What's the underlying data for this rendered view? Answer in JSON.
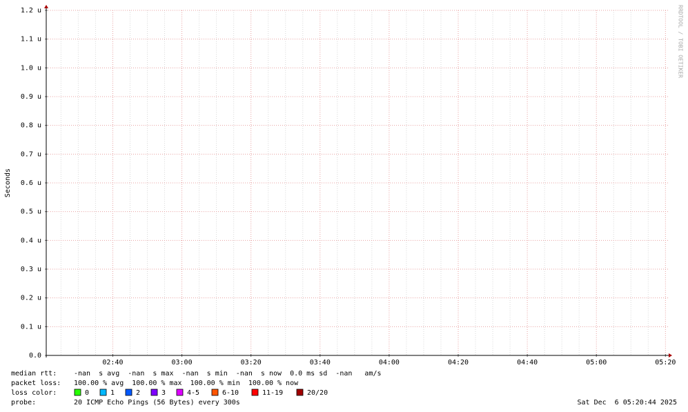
{
  "chart_data": {
    "type": "line",
    "y_label": "Seconds",
    "watermark": "RRDTOOL / TOBI OETIKER",
    "series": [],
    "ylim": [
      0,
      1.2e-06
    ],
    "yticks": [
      {
        "value": 0,
        "label": "0.0"
      },
      {
        "value": 1e-07,
        "label": "0.1 u"
      },
      {
        "value": 2e-07,
        "label": "0.2 u"
      },
      {
        "value": 3e-07,
        "label": "0.3 u"
      },
      {
        "value": 4e-07,
        "label": "0.4 u"
      },
      {
        "value": 5e-07,
        "label": "0.5 u"
      },
      {
        "value": 6e-07,
        "label": "0.6 u"
      },
      {
        "value": 7e-07,
        "label": "0.7 u"
      },
      {
        "value": 8e-07,
        "label": "0.8 u"
      },
      {
        "value": 9e-07,
        "label": "0.9 u"
      },
      {
        "value": 1e-06,
        "label": "1.0 u"
      },
      {
        "value": 1.1e-06,
        "label": "1.1 u"
      },
      {
        "value": 1.2e-06,
        "label": "1.2 u"
      }
    ],
    "xlim": [
      140.73,
      320.73
    ],
    "xticks": [
      {
        "value": 160,
        "label": "02:40"
      },
      {
        "value": 180,
        "label": "03:00"
      },
      {
        "value": 200,
        "label": "03:20"
      },
      {
        "value": 220,
        "label": "03:40"
      },
      {
        "value": 240,
        "label": "04:00"
      },
      {
        "value": 260,
        "label": "04:20"
      },
      {
        "value": 280,
        "label": "04:40"
      },
      {
        "value": 300,
        "label": "05:00"
      },
      {
        "value": 320,
        "label": "05:20"
      }
    ],
    "xminorticks": [
      145,
      150,
      155,
      165,
      170,
      175,
      185,
      190,
      195,
      205,
      210,
      215,
      225,
      230,
      235,
      245,
      250,
      255,
      265,
      270,
      275,
      285,
      290,
      295,
      305,
      310,
      315
    ],
    "grid": true,
    "grid_color": "#e8a0a0",
    "minor_grid_color": "#d8d8d8"
  },
  "legend": {
    "rows": [
      {
        "label": "median rtt:",
        "text": "-nan  s avg  -nan  s max  -nan  s min  -nan  s now  0.0 ms sd  -nan   am/s"
      },
      {
        "label": "packet loss:",
        "text": "100.00 % avg  100.00 % max  100.00 % min  100.00 % now"
      }
    ],
    "loss_label": "loss color:",
    "loss_colors": [
      {
        "name": "0",
        "color": "#26ff00"
      },
      {
        "name": "1",
        "color": "#00b8ff"
      },
      {
        "name": "2",
        "color": "#0059ff"
      },
      {
        "name": "3",
        "color": "#7e00ff"
      },
      {
        "name": "4-5",
        "color": "#dd00ff"
      },
      {
        "name": "6-10",
        "color": "#ff5500"
      },
      {
        "name": "11-19",
        "color": "#ff0000"
      },
      {
        "name": "20/20",
        "color": "#a10000"
      }
    ],
    "probe_label": "probe:",
    "probe": "20 ICMP Echo Pings (56 Bytes) every 300s",
    "timestamp": "Sat Dec  6 05:20:44 2025"
  }
}
